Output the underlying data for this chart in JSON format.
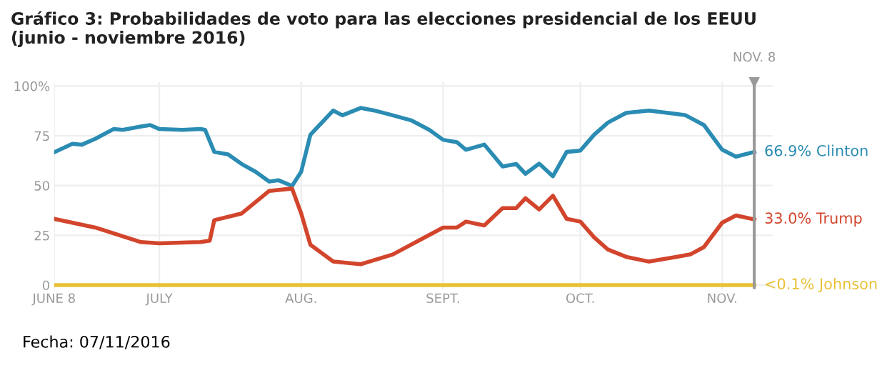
{
  "chart_data": {
    "type": "line",
    "title": "Gráfico 3: Probabilidades de voto para las elecciones presidencial de los EEUU\n(junio - noviembre 2016)",
    "annotations": [
      "Fecha: 07/11/2016"
    ],
    "xlim": [
      "2016-06-08",
      "2016-11-12"
    ],
    "xticks": [
      {
        "value": "2016-06-08",
        "label": "JUNE 8"
      },
      {
        "value": "2016-07-01",
        "label": "JULY"
      },
      {
        "value": "2016-08-01",
        "label": "AUG."
      },
      {
        "value": "2016-09-01",
        "label": "SEPT."
      },
      {
        "value": "2016-10-01",
        "label": "OCT."
      },
      {
        "value": "2016-11-01",
        "label": "NOV."
      }
    ],
    "ylim": [
      -2,
      102
    ],
    "yticks": [
      0,
      25,
      50,
      75,
      {
        "value": 100,
        "label": "100%"
      }
    ],
    "grid": true,
    "legend": false,
    "marker": "none",
    "line_style": "solid",
    "ref_lines": [
      {
        "axis": "x",
        "value": "2016-11-08",
        "label": "NOV. 8",
        "color": "#999999"
      }
    ],
    "series": [
      {
        "name": "Clinton",
        "color": "#2b8cb3",
        "x": [
          "2016-06-08",
          "2016-06-12",
          "2016-06-14",
          "2016-06-17",
          "2016-06-21",
          "2016-06-23",
          "2016-06-27",
          "2016-06-29",
          "2016-07-01",
          "2016-07-06",
          "2016-07-10",
          "2016-07-11",
          "2016-07-13",
          "2016-07-16",
          "2016-07-19",
          "2016-07-22",
          "2016-07-25",
          "2016-07-27",
          "2016-07-30",
          "2016-08-01",
          "2016-08-03",
          "2016-08-05",
          "2016-08-08",
          "2016-08-10",
          "2016-08-14",
          "2016-08-17",
          "2016-08-21",
          "2016-08-25",
          "2016-08-29",
          "2016-09-01",
          "2016-09-04",
          "2016-09-06",
          "2016-09-10",
          "2016-09-14",
          "2016-09-17",
          "2016-09-19",
          "2016-09-22",
          "2016-09-25",
          "2016-09-28",
          "2016-10-01",
          "2016-10-04",
          "2016-10-07",
          "2016-10-11",
          "2016-10-16",
          "2016-10-22",
          "2016-10-24",
          "2016-10-28",
          "2016-11-01",
          "2016-11-04",
          "2016-11-08"
        ],
        "values": [
          66.7,
          71,
          70.5,
          73.5,
          78.4,
          78,
          79.7,
          80.4,
          78.4,
          78,
          78.4,
          78,
          66.9,
          65.7,
          60.8,
          57,
          52,
          52.7,
          49.8,
          57,
          75.5,
          80.4,
          87.7,
          85.3,
          89,
          87.7,
          85.3,
          82.8,
          78,
          73,
          71.8,
          68,
          70.6,
          59.6,
          60.8,
          55.9,
          61,
          54.7,
          66.9,
          67.6,
          75.5,
          81.6,
          86.5,
          87.7,
          86,
          85.3,
          80.4,
          68,
          64.5,
          66.9
        ],
        "value_labels": [
          null,
          null,
          null,
          null,
          null,
          null,
          null,
          null,
          null,
          null,
          null,
          null,
          null,
          null,
          null,
          null,
          null,
          null,
          null,
          null,
          null,
          null,
          null,
          null,
          null,
          null,
          null,
          null,
          null,
          null,
          null,
          null,
          null,
          null,
          null,
          null,
          null,
          null,
          null,
          null,
          null,
          null,
          null,
          null,
          null,
          null,
          null,
          null,
          null,
          "66.9%"
        ]
      },
      {
        "name": "Trump",
        "color": "#d2452c",
        "x": [
          "2016-06-08",
          "2016-06-17",
          "2016-06-27",
          "2016-07-01",
          "2016-07-10",
          "2016-07-12",
          "2016-07-13",
          "2016-07-19",
          "2016-07-25",
          "2016-07-30",
          "2016-08-01",
          "2016-08-03",
          "2016-08-08",
          "2016-08-14",
          "2016-08-21",
          "2016-08-29",
          "2016-09-01",
          "2016-09-04",
          "2016-09-06",
          "2016-09-10",
          "2016-09-14",
          "2016-09-17",
          "2016-09-19",
          "2016-09-22",
          "2016-09-25",
          "2016-09-28",
          "2016-10-01",
          "2016-10-04",
          "2016-10-07",
          "2016-10-11",
          "2016-10-16",
          "2016-10-22",
          "2016-10-25",
          "2016-10-28",
          "2016-11-01",
          "2016-11-04",
          "2016-11-08"
        ],
        "values": [
          33.3,
          28.9,
          21.6,
          21,
          21.6,
          22.3,
          32.6,
          36,
          47.3,
          48.5,
          36,
          20.3,
          11.8,
          10.5,
          15.4,
          25.2,
          28.9,
          28.9,
          31.9,
          30,
          38.7,
          38.7,
          43.6,
          38,
          44.9,
          33.3,
          31.9,
          24,
          17.9,
          14.2,
          11.8,
          14.2,
          15.4,
          19.1,
          31.4,
          35,
          33.0
        ],
        "value_labels": [
          null,
          null,
          null,
          null,
          null,
          null,
          null,
          null,
          null,
          null,
          null,
          null,
          null,
          null,
          null,
          null,
          null,
          null,
          null,
          null,
          null,
          null,
          null,
          null,
          null,
          null,
          null,
          null,
          null,
          null,
          null,
          null,
          null,
          null,
          null,
          null,
          "33.0%"
        ]
      },
      {
        "name": "Johnson",
        "color": "#e8c136",
        "x": [
          "2016-06-08",
          "2016-11-08"
        ],
        "values": [
          0,
          0
        ],
        "value_labels": [
          null,
          "<0.1%"
        ]
      }
    ]
  }
}
